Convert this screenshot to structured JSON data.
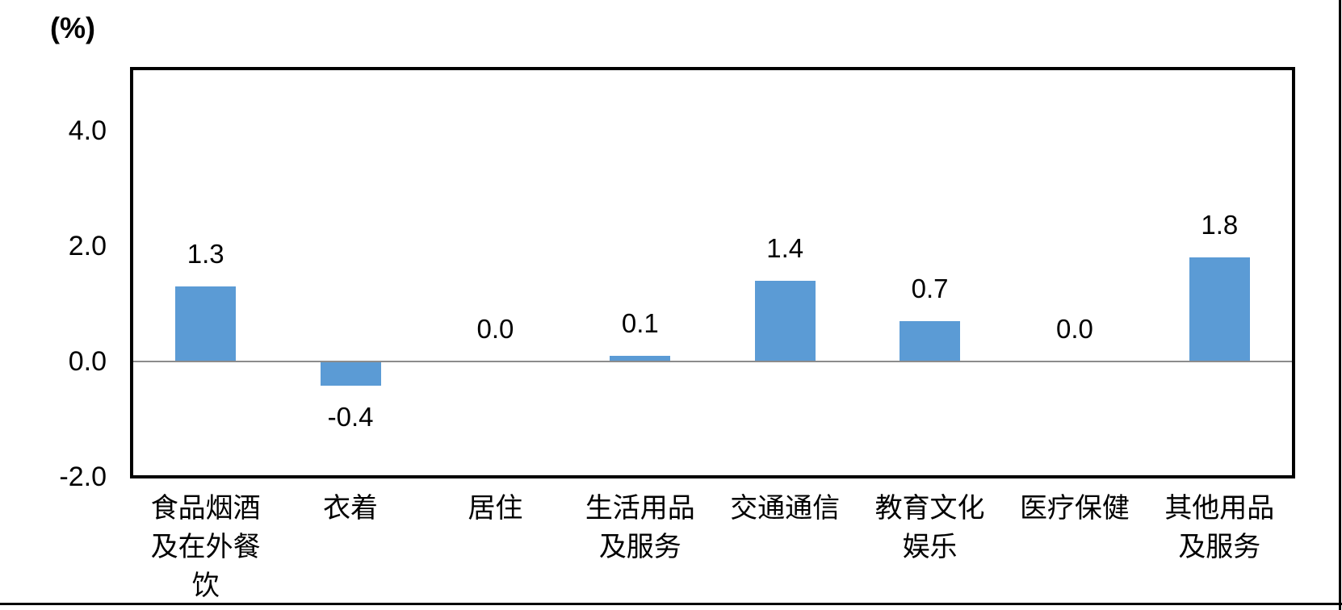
{
  "chart_data": {
    "type": "bar",
    "title": "",
    "y_axis_unit_label": "(%)",
    "categories": [
      "食品烟酒\n及在外餐\n饮",
      "衣着",
      "居住",
      "生活用品\n及服务",
      "交通通信",
      "教育文化\n娱乐",
      "医疗保健",
      "其他用品\n及服务"
    ],
    "values": [
      1.3,
      -0.4,
      0.0,
      0.1,
      1.4,
      0.7,
      0.0,
      1.8
    ],
    "data_labels": [
      "1.3",
      "-0.4",
      "0.0",
      "0.1",
      "1.4",
      "0.7",
      "0.0",
      "1.8"
    ],
    "y_ticks": {
      "values": [
        4.0,
        2.0,
        0.0,
        -2.0
      ],
      "labels": [
        "4.0",
        "2.0",
        "0.0",
        "-2.0"
      ]
    },
    "ylim": [
      -2.0,
      5.1
    ],
    "xlabel": "",
    "ylabel": "",
    "grid": "off",
    "legend": "none",
    "colors": {
      "bar": "#5B9BD5",
      "zero_line": "#8C8C8C",
      "plot_border": "#000000",
      "text": "#000000"
    }
  }
}
